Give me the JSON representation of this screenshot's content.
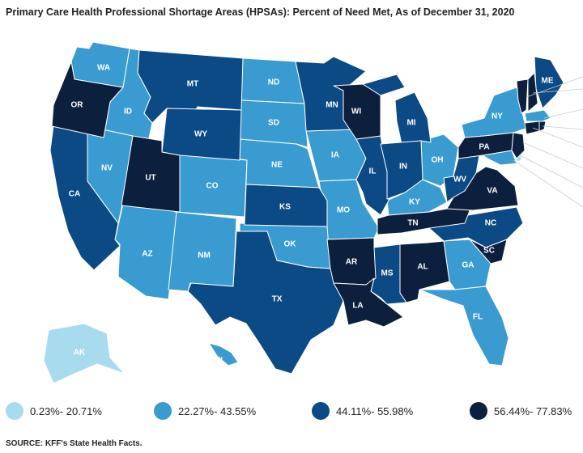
{
  "title": "Primary Care Health Professional Shortage Areas (HPSAs): Percent of Need Met, As of December 31, 2020",
  "source": "SOURCE: KFF's State Health Facts.",
  "colors": {
    "c1": "#a9dbef",
    "c2": "#3a9bd0",
    "c3": "#0b4a84",
    "c4": "#0c1f3d"
  },
  "legend": [
    {
      "label": "0.23%- 20.71%",
      "color": "#a9dbef"
    },
    {
      "label": "22.27%- 43.55%",
      "color": "#3a9bd0"
    },
    {
      "label": "44.11%- 55.98%",
      "color": "#0b4a84"
    },
    {
      "label": "56.44%- 77.83%",
      "color": "#0c1f3d"
    }
  ],
  "states": {
    "WA": "WA",
    "OR": "OR",
    "CA": "CA",
    "NV": "NV",
    "ID": "ID",
    "MT": "MT",
    "WY": "WY",
    "UT": "UT",
    "AZ": "AZ",
    "CO": "CO",
    "NM": "NM",
    "ND": "ND",
    "SD": "SD",
    "NE": "NE",
    "KS": "KS",
    "OK": "OK",
    "TX": "TX",
    "MN": "MN",
    "IA": "IA",
    "MO": "MO",
    "AR": "AR",
    "LA": "LA",
    "WI": "WI",
    "IL": "IL",
    "MS": "MS",
    "MI": "MI",
    "IN": "IN",
    "OH": "OH",
    "KY": "KY",
    "TN": "TN",
    "AL": "AL",
    "GA": "GA",
    "FL": "FL",
    "SC": "SC",
    "NC": "NC",
    "VA": "VA",
    "WV": "WV",
    "PA": "PA",
    "NY": "NY",
    "ME": "ME",
    "AK": "AK",
    "HI": "HI"
  }
}
